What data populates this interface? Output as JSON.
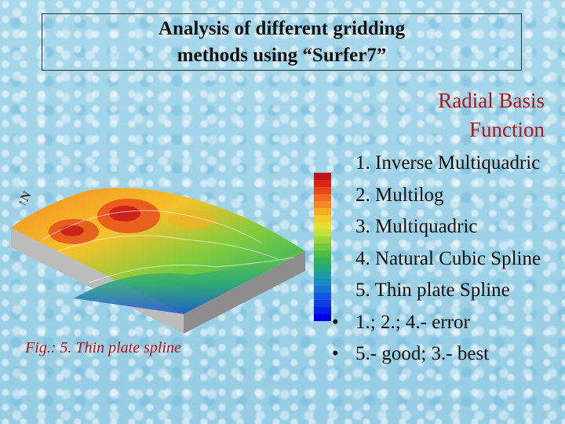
{
  "title": {
    "line1": "Analysis of different gridding",
    "line2": "methods using “Surfer7”"
  },
  "subtitle": {
    "line1": "Radial Basis",
    "line2": "Function"
  },
  "list": [
    {
      "marker": "",
      "text": "1. Inverse Multiquadric"
    },
    {
      "marker": "",
      "text": "2. Multilog"
    },
    {
      "marker": "",
      "text": "3. Multiquadric"
    },
    {
      "marker": "",
      "text": "4. Natural Cubic Spline"
    },
    {
      "marker": "",
      "text": "5. Thin plate Spline"
    },
    {
      "marker": "•",
      "text": "1.; 2.; 4.- error"
    },
    {
      "marker": "•",
      "text": "5.- good; 3.- best"
    }
  ],
  "caption": "Fig.: 5. Thin plate spline",
  "colors": {
    "title_text": "#111111",
    "accent_red": "#b5141c",
    "background": "#9fd3e8"
  },
  "figure": {
    "icon": "3d-surface-plot-image",
    "scale_colors": [
      "#c0131a",
      "#d8261a",
      "#e8451c",
      "#ef6a1e",
      "#f48b21",
      "#f7ac24",
      "#f5cb2a",
      "#e6e033",
      "#c6e23a",
      "#9cd63c",
      "#72c93e",
      "#4dbd42",
      "#33b25e",
      "#25a880",
      "#1e9ca2",
      "#1a8cc0",
      "#1574d4",
      "#1159e0",
      "#0c3ee6",
      "#0722e8",
      "#0000e0"
    ]
  }
}
